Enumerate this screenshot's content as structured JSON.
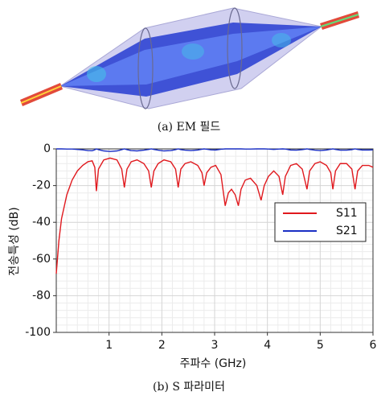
{
  "captions": {
    "a": "(a) EM 필드",
    "b": "(b) S 파라미터"
  },
  "chart_data": {
    "type": "line",
    "x_label": "주파수 (GHz)",
    "y_label": "전송특성 (dB)",
    "xlim": [
      0,
      6
    ],
    "ylim": [
      -100,
      0
    ],
    "xticks": [
      1,
      2,
      3,
      4,
      5,
      6
    ],
    "yticks": [
      0,
      -20,
      -40,
      -60,
      -80,
      -100
    ],
    "grid": true,
    "legend": "right",
    "x": [
      0,
      0.05,
      0.1,
      0.2,
      0.3,
      0.4,
      0.5,
      0.6,
      0.68,
      0.73,
      0.76,
      0.8,
      0.9,
      1.02,
      1.15,
      1.24,
      1.29,
      1.34,
      1.42,
      1.53,
      1.66,
      1.75,
      1.8,
      1.85,
      1.93,
      2.04,
      2.17,
      2.26,
      2.31,
      2.36,
      2.44,
      2.55,
      2.68,
      2.76,
      2.8,
      2.85,
      2.93,
      3.02,
      3.12,
      3.2,
      3.26,
      3.32,
      3.39,
      3.45,
      3.5,
      3.58,
      3.68,
      3.8,
      3.88,
      3.94,
      4.02,
      4.12,
      4.22,
      4.29,
      4.34,
      4.44,
      4.55,
      4.66,
      4.75,
      4.8,
      4.9,
      5.0,
      5.12,
      5.2,
      5.24,
      5.29,
      5.38,
      5.5,
      5.6,
      5.66,
      5.71,
      5.8,
      5.92,
      6.0
    ],
    "series": [
      {
        "name": "S11",
        "color": "#e0191e",
        "values": [
          -68,
          -50,
          -38,
          -25,
          -17,
          -12,
          -9,
          -7,
          -6.5,
          -10,
          -23,
          -11,
          -6,
          -5,
          -6,
          -11,
          -21,
          -11,
          -7,
          -6,
          -8,
          -12,
          -21,
          -12,
          -8,
          -6,
          -7,
          -11,
          -21,
          -11,
          -8,
          -7,
          -9,
          -13,
          -20,
          -13,
          -10,
          -9,
          -14,
          -31,
          -24,
          -22,
          -25,
          -31,
          -22,
          -17,
          -16,
          -20,
          -28,
          -20,
          -15,
          -12,
          -15,
          -25,
          -15,
          -9,
          -8,
          -11,
          -22,
          -12,
          -8,
          -7,
          -9,
          -13,
          -22,
          -12,
          -8,
          -8,
          -11,
          -22,
          -12,
          -9,
          -9,
          -10
        ]
      },
      {
        "name": "S21",
        "color": "#1a2fc4",
        "values": [
          0,
          0,
          0,
          -0.1,
          -0.1,
          -0.3,
          -0.5,
          -0.9,
          -1,
          -0.5,
          0,
          -0.4,
          -1.1,
          -1.4,
          -1.1,
          -0.4,
          0,
          -0.4,
          -0.9,
          -1.1,
          -0.7,
          -0.3,
          0,
          -0.3,
          -0.7,
          -1.1,
          -0.9,
          -0.4,
          0,
          -0.4,
          -0.7,
          -0.9,
          -0.6,
          -0.2,
          0,
          -0.2,
          -0.5,
          -0.6,
          -0.2,
          0,
          0,
          0,
          0,
          0,
          0,
          -0.1,
          -0.1,
          0,
          0,
          0,
          -0.1,
          -0.3,
          -0.1,
          0,
          -0.1,
          -0.6,
          -0.7,
          -0.4,
          0,
          -0.3,
          -0.7,
          -0.9,
          -0.6,
          -0.2,
          0,
          -0.3,
          -0.7,
          -0.7,
          -0.4,
          0,
          -0.3,
          -0.6,
          -0.6,
          -0.5
        ]
      }
    ]
  }
}
